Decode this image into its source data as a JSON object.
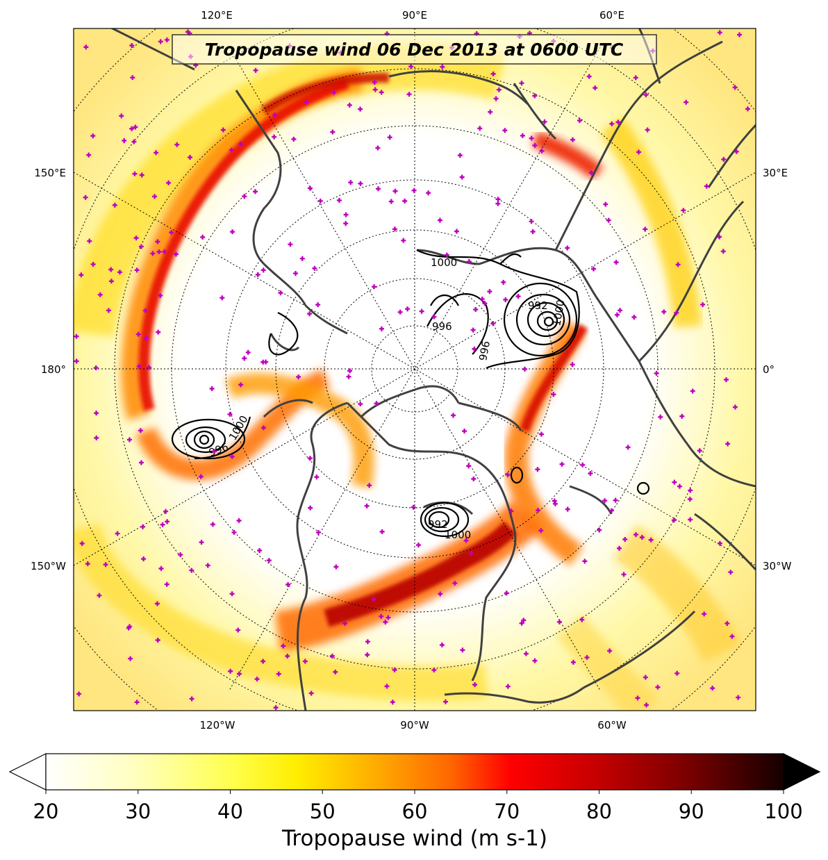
{
  "title": "Tropopause wind 06 Dec 2013 at 0600 UTC",
  "top_labels": [
    "120°E",
    "90°E",
    "60°E"
  ],
  "bottom_labels": [
    "120°W",
    "90°W",
    "60°W"
  ],
  "left_labels": [
    "150°E",
    "180°",
    "150°W"
  ],
  "right_labels": [
    "30°E",
    "0°",
    "30°W"
  ],
  "colorbar": {
    "label": "Tropopause wind (m s-1)",
    "ticks": [
      "20",
      "30",
      "40",
      "50",
      "60",
      "70",
      "80",
      "90",
      "100"
    ],
    "min": 20,
    "max": 100,
    "extend": "both"
  },
  "contour_labels": [
    "1000",
    "996",
    "1000",
    "992",
    "996",
    "996",
    "1000",
    "992",
    "1000"
  ],
  "colors": {
    "land_outline": "#404040",
    "station_marker": "#c000c0",
    "contour": "#000000"
  }
}
